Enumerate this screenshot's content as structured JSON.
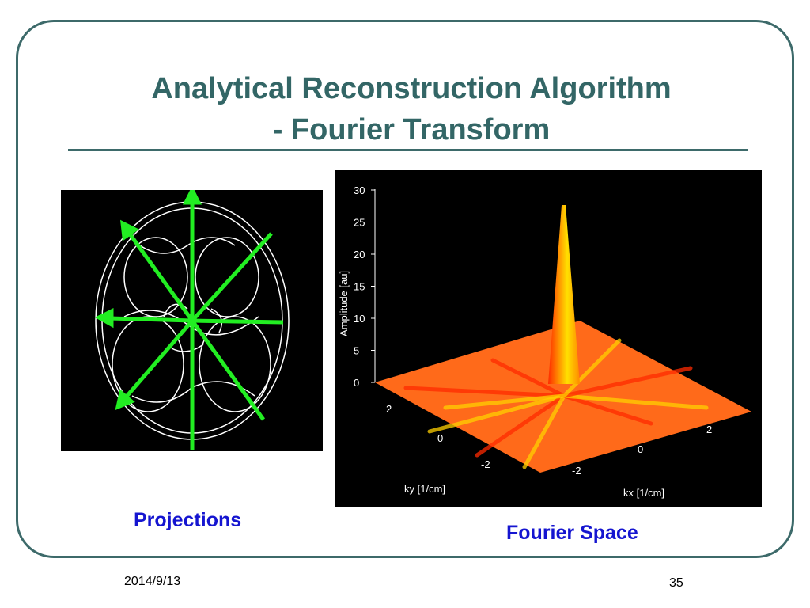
{
  "slide": {
    "title_line1": "Analytical Reconstruction Algorithm",
    "title_line2": "- Fourier Transform",
    "caption_left": "Projections",
    "caption_right": "Fourier Space",
    "date": "2014/9/13",
    "page_number": "35"
  },
  "plot": {
    "z_label": "Amplitude [au]",
    "z_ticks": [
      "0",
      "5",
      "10",
      "15",
      "20",
      "25",
      "30"
    ],
    "ky_label": "ky [1/cm]",
    "ky_ticks": [
      "2",
      "0",
      "-2"
    ],
    "kx_label": "kx [1/cm]",
    "kx_ticks": [
      "-2",
      "0",
      "2"
    ]
  },
  "colors": {
    "title": "#336666",
    "caption": "#1515d0",
    "arrows": "#22ee22",
    "surface": "#ff6a1a",
    "peak": "#ffe000"
  }
}
